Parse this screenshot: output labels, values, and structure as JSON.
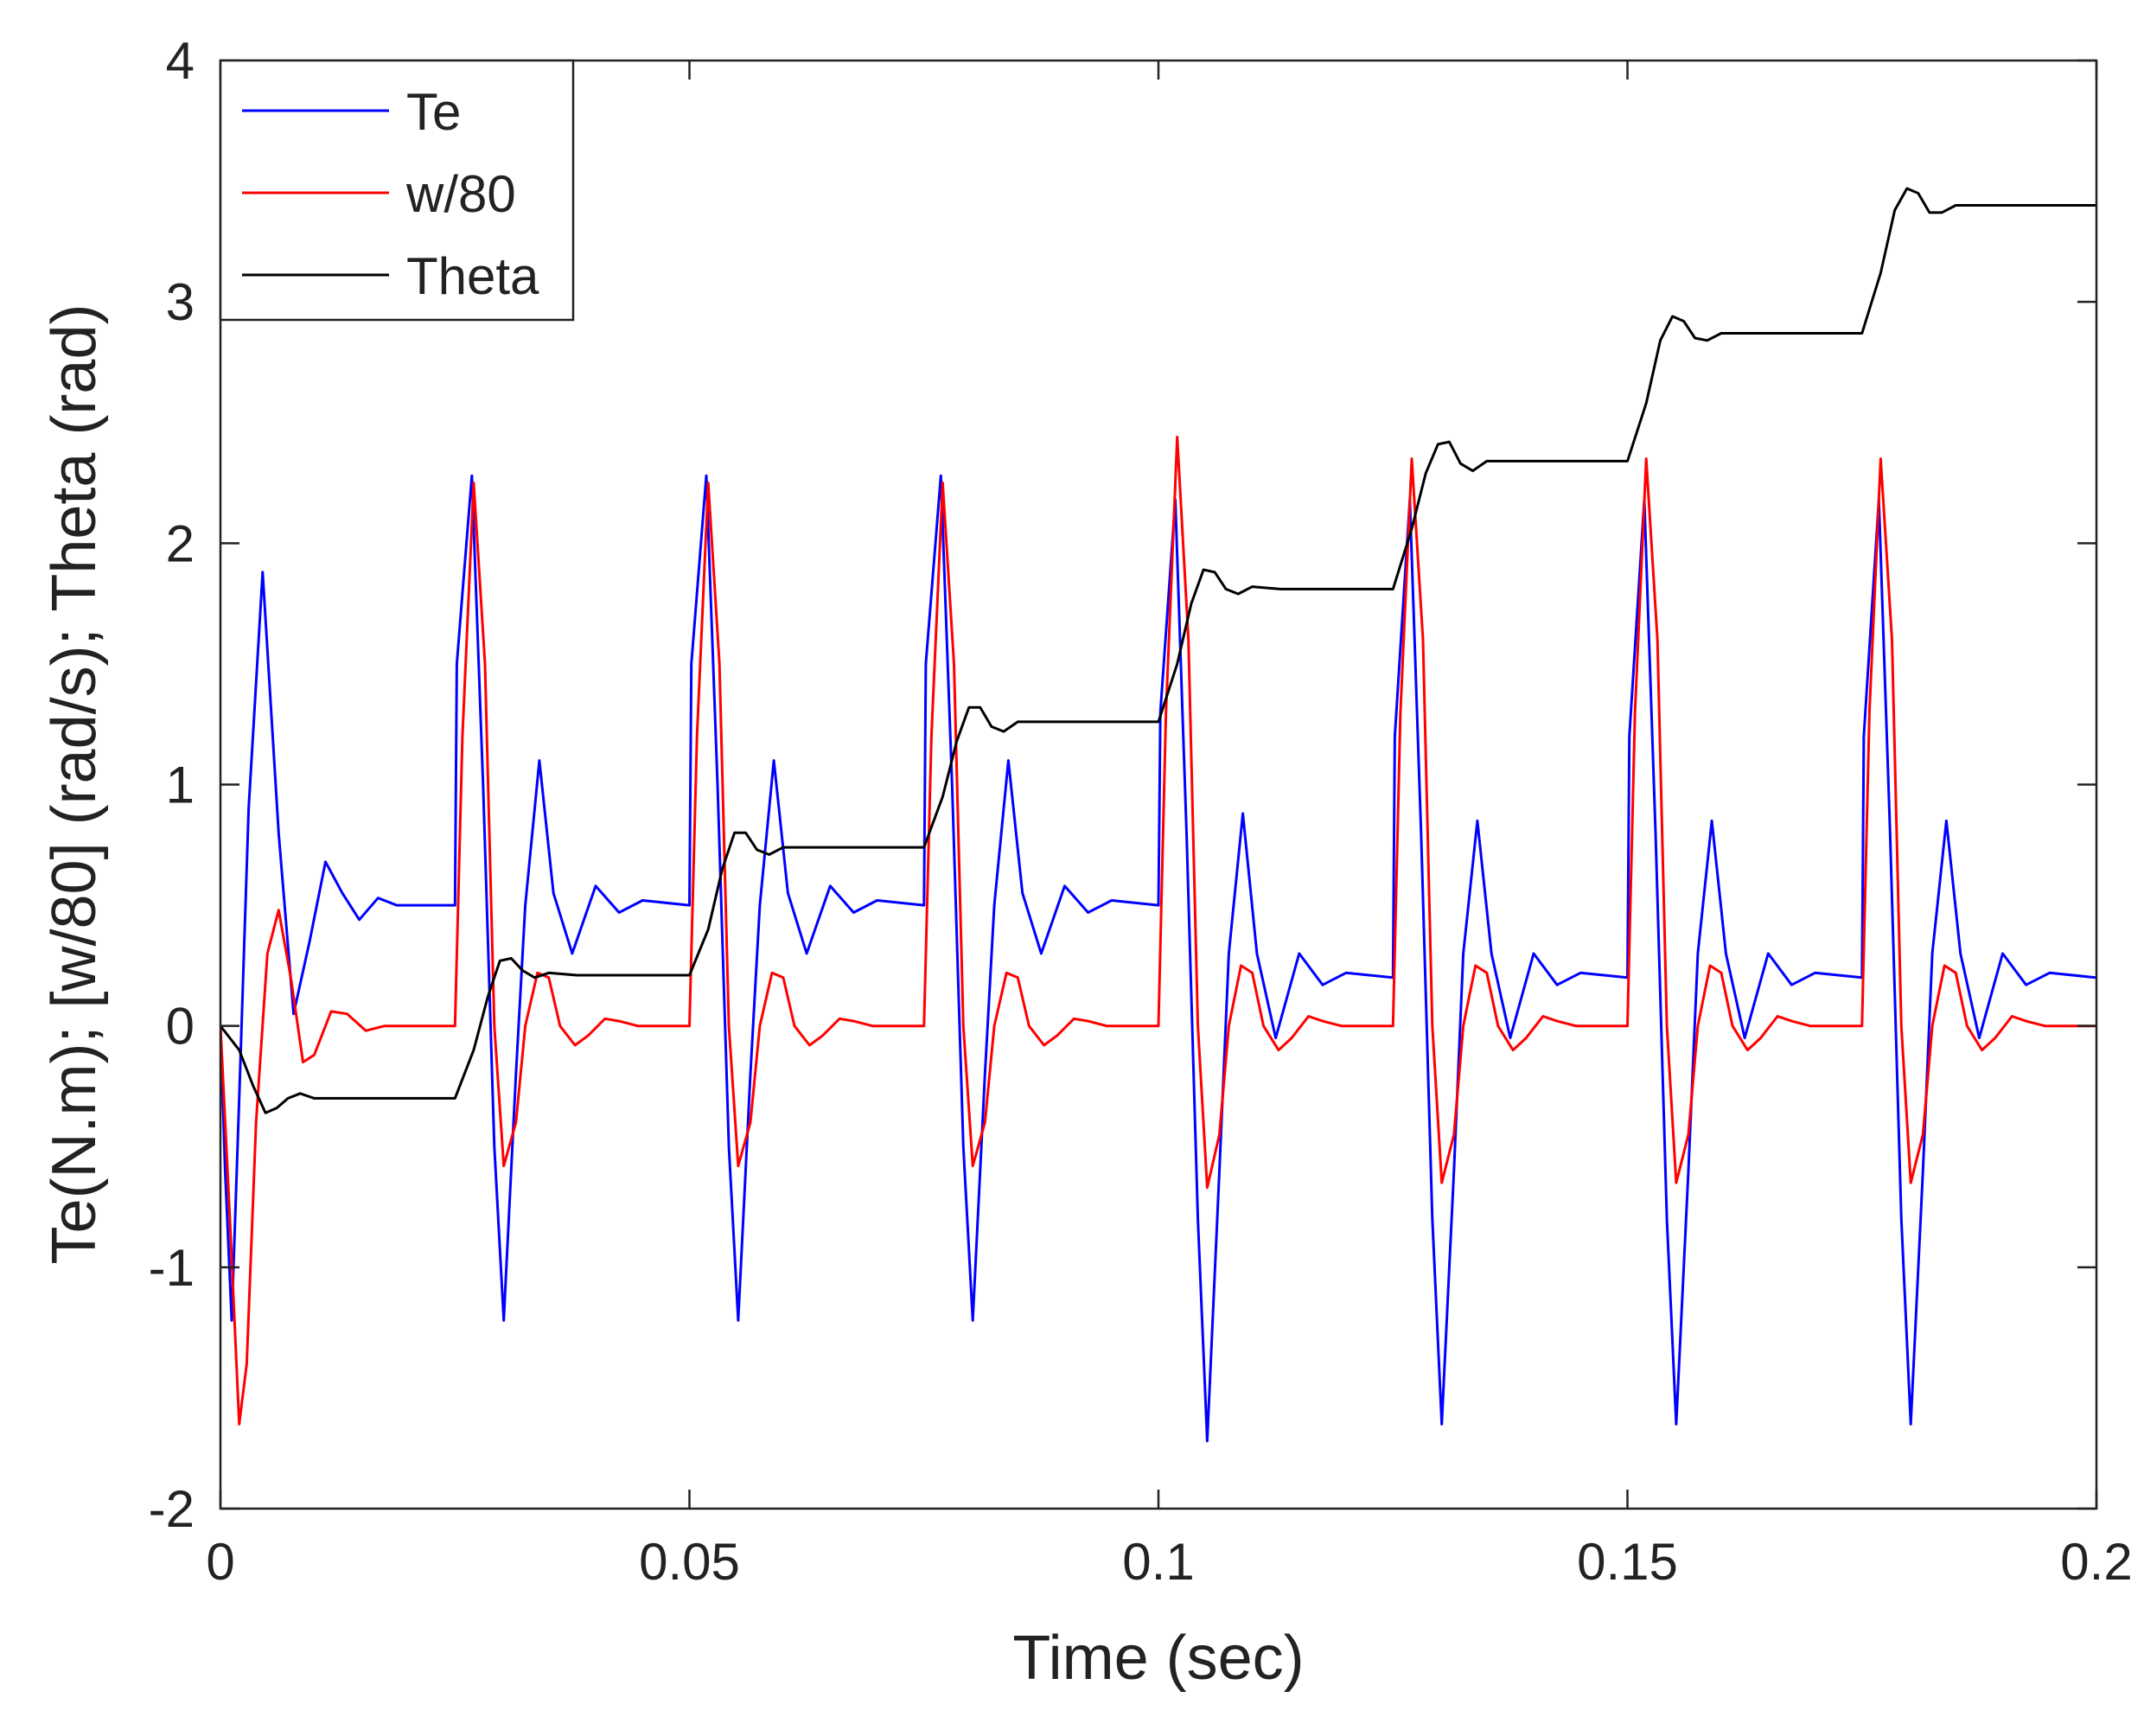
{
  "chart_data": {
    "type": "line",
    "title": "",
    "xlabel": "Time (sec)",
    "ylabel": "Te(N.m); [w/80] (rad/s); Theta (rad)",
    "xlim": [
      0,
      0.2
    ],
    "ylim": [
      -2,
      4
    ],
    "xticks": [
      0,
      0.05,
      0.1,
      0.15,
      0.2
    ],
    "xtick_labels": [
      "0",
      "0.05",
      "0.1",
      "0.15",
      "0.2"
    ],
    "yticks": [
      -2,
      -1,
      0,
      1,
      2,
      3,
      4
    ],
    "ytick_labels": [
      "-2",
      "-1",
      "0",
      "1",
      "2",
      "3",
      "4"
    ],
    "grid": false,
    "legend_position": "top-left",
    "series": [
      {
        "name": "Te",
        "color": "#0000ff",
        "x": [
          0,
          0.0005,
          0.0012,
          0.002,
          0.003,
          0.0045,
          0.0062,
          0.0078,
          0.0095,
          0.0112,
          0.013,
          0.0148,
          0.0168,
          0.0188,
          0.021,
          0.025,
          0.0252,
          0.0268,
          0.028,
          0.0292,
          0.0302,
          0.0315,
          0.0325,
          0.034,
          0.0355,
          0.0375,
          0.04,
          0.0425,
          0.045,
          0.05,
          0.0502,
          0.0518,
          0.053,
          0.0542,
          0.0552,
          0.0565,
          0.0575,
          0.059,
          0.0605,
          0.0625,
          0.065,
          0.0675,
          0.07,
          0.075,
          0.0752,
          0.0768,
          0.078,
          0.0792,
          0.0802,
          0.0815,
          0.0825,
          0.084,
          0.0855,
          0.0875,
          0.09,
          0.0925,
          0.095,
          0.1,
          0.1002,
          0.1018,
          0.103,
          0.1042,
          0.1052,
          0.1065,
          0.1075,
          0.109,
          0.1105,
          0.1125,
          0.115,
          0.1175,
          0.12,
          0.125,
          0.1252,
          0.1268,
          0.128,
          0.1292,
          0.1302,
          0.1315,
          0.1325,
          0.134,
          0.1355,
          0.1375,
          0.14,
          0.1425,
          0.145,
          0.15,
          0.1502,
          0.1518,
          0.153,
          0.1542,
          0.1552,
          0.1565,
          0.1575,
          0.159,
          0.1605,
          0.1625,
          0.165,
          0.1675,
          0.17,
          0.175,
          0.1752,
          0.1768,
          0.178,
          0.1792,
          0.1802,
          0.1815,
          0.1825,
          0.184,
          0.1855,
          0.1875,
          0.19,
          0.1925,
          0.195,
          0.2
        ],
        "y": [
          0,
          -0.6,
          -1.22,
          -0.3,
          0.9,
          1.88,
          0.8,
          0.05,
          0.35,
          0.68,
          0.55,
          0.44,
          0.53,
          0.5,
          0.5,
          0.5,
          1.5,
          2.28,
          1.0,
          -0.5,
          -1.22,
          -0.2,
          0.5,
          1.1,
          0.55,
          0.3,
          0.58,
          0.47,
          0.52,
          0.5,
          1.5,
          2.28,
          1.0,
          -0.5,
          -1.22,
          -0.2,
          0.5,
          1.1,
          0.55,
          0.3,
          0.58,
          0.47,
          0.52,
          0.5,
          1.5,
          2.28,
          1.0,
          -0.5,
          -1.22,
          -0.2,
          0.5,
          1.1,
          0.55,
          0.3,
          0.58,
          0.47,
          0.52,
          0.5,
          1.3,
          2.18,
          0.8,
          -0.8,
          -1.72,
          -0.6,
          0.3,
          0.88,
          0.3,
          -0.05,
          0.3,
          0.17,
          0.22,
          0.2,
          1.2,
          2.18,
          0.8,
          -0.8,
          -1.65,
          -0.6,
          0.3,
          0.85,
          0.3,
          -0.05,
          0.3,
          0.17,
          0.22,
          0.2,
          1.2,
          2.18,
          0.8,
          -0.8,
          -1.65,
          -0.6,
          0.3,
          0.85,
          0.3,
          -0.05,
          0.3,
          0.17,
          0.22,
          0.2,
          1.2,
          2.18,
          0.8,
          -0.8,
          -1.65,
          -0.6,
          0.3,
          0.85,
          0.3,
          -0.05,
          0.3,
          0.17,
          0.22,
          0.2
        ]
      },
      {
        "name": "w/80",
        "color": "#ff0000",
        "x": [
          0,
          0.001,
          0.002,
          0.0028,
          0.0038,
          0.005,
          0.0062,
          0.0075,
          0.0088,
          0.01,
          0.0118,
          0.0135,
          0.0155,
          0.0175,
          0.0195,
          0.025,
          0.0258,
          0.027,
          0.0282,
          0.0292,
          0.0302,
          0.0315,
          0.0325,
          0.0338,
          0.035,
          0.0362,
          0.0378,
          0.0392,
          0.041,
          0.0425,
          0.0445,
          0.05,
          0.0508,
          0.052,
          0.0532,
          0.0542,
          0.0552,
          0.0565,
          0.0575,
          0.0588,
          0.06,
          0.0612,
          0.0628,
          0.0642,
          0.066,
          0.0675,
          0.0695,
          0.075,
          0.0758,
          0.077,
          0.0782,
          0.0792,
          0.0802,
          0.0815,
          0.0825,
          0.0838,
          0.085,
          0.0862,
          0.0878,
          0.0892,
          0.091,
          0.0925,
          0.0945,
          0.1,
          0.1008,
          0.102,
          0.1032,
          0.1042,
          0.1052,
          0.1065,
          0.1075,
          0.1088,
          0.11,
          0.1112,
          0.1128,
          0.1142,
          0.116,
          0.1175,
          0.1195,
          0.125,
          0.1258,
          0.127,
          0.1282,
          0.1292,
          0.1302,
          0.1315,
          0.1325,
          0.1338,
          0.135,
          0.1362,
          0.1378,
          0.1392,
          0.141,
          0.1425,
          0.1445,
          0.15,
          0.1508,
          0.152,
          0.1532,
          0.1542,
          0.1552,
          0.1565,
          0.1575,
          0.1588,
          0.16,
          0.1612,
          0.1628,
          0.1642,
          0.166,
          0.1675,
          0.1695,
          0.175,
          0.1758,
          0.177,
          0.1782,
          0.1792,
          0.1802,
          0.1815,
          0.1825,
          0.1838,
          0.185,
          0.1862,
          0.1878,
          0.1892,
          0.191,
          0.1925,
          0.1945,
          0.2
        ],
        "y": [
          0,
          -0.8,
          -1.65,
          -1.4,
          -0.4,
          0.3,
          0.48,
          0.2,
          -0.15,
          -0.12,
          0.06,
          0.05,
          -0.02,
          0.0,
          0.0,
          0.0,
          1.2,
          2.25,
          1.5,
          0.0,
          -0.58,
          -0.4,
          0.0,
          0.22,
          0.2,
          0.0,
          -0.08,
          -0.04,
          0.03,
          0.02,
          0.0,
          0.0,
          1.2,
          2.25,
          1.5,
          0.0,
          -0.58,
          -0.4,
          0.0,
          0.22,
          0.2,
          0.0,
          -0.08,
          -0.04,
          0.03,
          0.02,
          0.0,
          0.0,
          1.2,
          2.25,
          1.5,
          0.0,
          -0.58,
          -0.4,
          0.0,
          0.22,
          0.2,
          0.0,
          -0.08,
          -0.04,
          0.03,
          0.02,
          0.0,
          0.0,
          1.3,
          2.44,
          1.6,
          0.0,
          -0.67,
          -0.45,
          0.0,
          0.25,
          0.22,
          0.0,
          -0.1,
          -0.05,
          0.04,
          0.02,
          0.0,
          0.0,
          1.3,
          2.35,
          1.6,
          0.0,
          -0.65,
          -0.45,
          0.0,
          0.25,
          0.22,
          0.0,
          -0.1,
          -0.05,
          0.04,
          0.02,
          0.0,
          0.0,
          1.3,
          2.35,
          1.6,
          0.0,
          -0.65,
          -0.45,
          0.0,
          0.25,
          0.22,
          0.0,
          -0.1,
          -0.05,
          0.04,
          0.02,
          0.0,
          0.0,
          1.3,
          2.35,
          1.6,
          0.0,
          -0.65,
          -0.45,
          0.0,
          0.25,
          0.22,
          0.0,
          -0.1,
          -0.05,
          0.04,
          0.02,
          0.0,
          0.0
        ]
      },
      {
        "name": "Theta",
        "color": "#000000",
        "x": [
          0,
          0.002,
          0.0035,
          0.0048,
          0.006,
          0.0072,
          0.0085,
          0.01,
          0.013,
          0.025,
          0.027,
          0.0285,
          0.0298,
          0.031,
          0.0322,
          0.0335,
          0.035,
          0.038,
          0.05,
          0.052,
          0.0535,
          0.0548,
          0.056,
          0.0572,
          0.0585,
          0.06,
          0.063,
          0.075,
          0.077,
          0.0785,
          0.0798,
          0.081,
          0.0822,
          0.0835,
          0.085,
          0.088,
          0.1,
          0.102,
          0.1035,
          0.1048,
          0.106,
          0.1072,
          0.1085,
          0.11,
          0.113,
          0.125,
          0.127,
          0.1285,
          0.1298,
          0.131,
          0.1322,
          0.1335,
          0.135,
          0.138,
          0.15,
          0.152,
          0.1535,
          0.1548,
          0.156,
          0.1572,
          0.1585,
          0.16,
          0.163,
          0.175,
          0.177,
          0.1785,
          0.1798,
          0.181,
          0.1822,
          0.1835,
          0.185,
          0.188,
          0.2
        ],
        "y": [
          0,
          -0.1,
          -0.25,
          -0.36,
          -0.34,
          -0.3,
          -0.28,
          -0.3,
          -0.3,
          -0.3,
          -0.1,
          0.12,
          0.27,
          0.28,
          0.23,
          0.2,
          0.22,
          0.21,
          0.21,
          0.4,
          0.65,
          0.8,
          0.8,
          0.73,
          0.71,
          0.74,
          0.74,
          0.74,
          0.95,
          1.18,
          1.32,
          1.32,
          1.24,
          1.22,
          1.26,
          1.26,
          1.26,
          1.5,
          1.75,
          1.89,
          1.88,
          1.81,
          1.79,
          1.82,
          1.81,
          1.81,
          2.06,
          2.29,
          2.41,
          2.42,
          2.33,
          2.3,
          2.34,
          2.34,
          2.34,
          2.58,
          2.84,
          2.94,
          2.92,
          2.85,
          2.84,
          2.87,
          2.87,
          2.87,
          3.12,
          3.38,
          3.47,
          3.45,
          3.37,
          3.37,
          3.4,
          3.4,
          3.4
        ]
      }
    ]
  }
}
